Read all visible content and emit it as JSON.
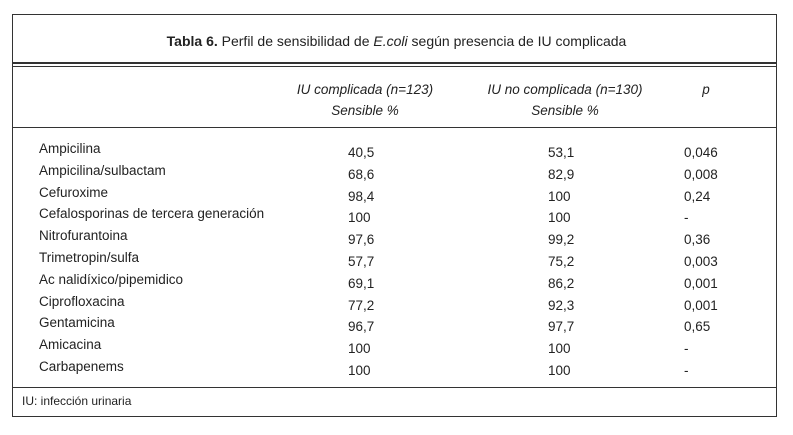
{
  "title": {
    "label": "Tabla 6.",
    "before": "Perfil de sensibilidad de",
    "italic": "E.coli",
    "after": "según presencia de IU complicada"
  },
  "table": {
    "headers": [
      {
        "line1": "IU complicada (n=123)",
        "line2": "Sensible %"
      },
      {
        "line1": "IU no complicada (n=130)",
        "line2": "Sensible %"
      },
      {
        "line1": "p"
      }
    ],
    "rows": [
      [
        "Ampicilina",
        "40,5",
        "53,1",
        "0,046"
      ],
      [
        "Ampicilina/sulbactam",
        "68,6",
        "82,9",
        "0,008"
      ],
      [
        "Cefuroxime",
        "98,4",
        "100",
        "0,24"
      ],
      [
        "Cefalosporinas de tercera generación",
        "100",
        "100",
        "-"
      ],
      [
        "Nitrofurantoina",
        "97,6",
        "99,2",
        "0,36"
      ],
      [
        "Trimetropin/sulfa",
        "57,7",
        "75,2",
        "0,003"
      ],
      [
        "Ac nalidíxico/pipemidico",
        "69,1",
        "86,2",
        "0,001"
      ],
      [
        "Ciprofloxacina",
        "77,2",
        "92,3",
        "0,001"
      ],
      [
        "Gentamicina",
        "96,7",
        "97,7",
        "0,65"
      ],
      [
        "Amicacina",
        "100",
        "100",
        "-"
      ],
      [
        "Carbapenems",
        "100",
        "100",
        "-"
      ]
    ]
  },
  "footnote": "IU: infección urinaria"
}
